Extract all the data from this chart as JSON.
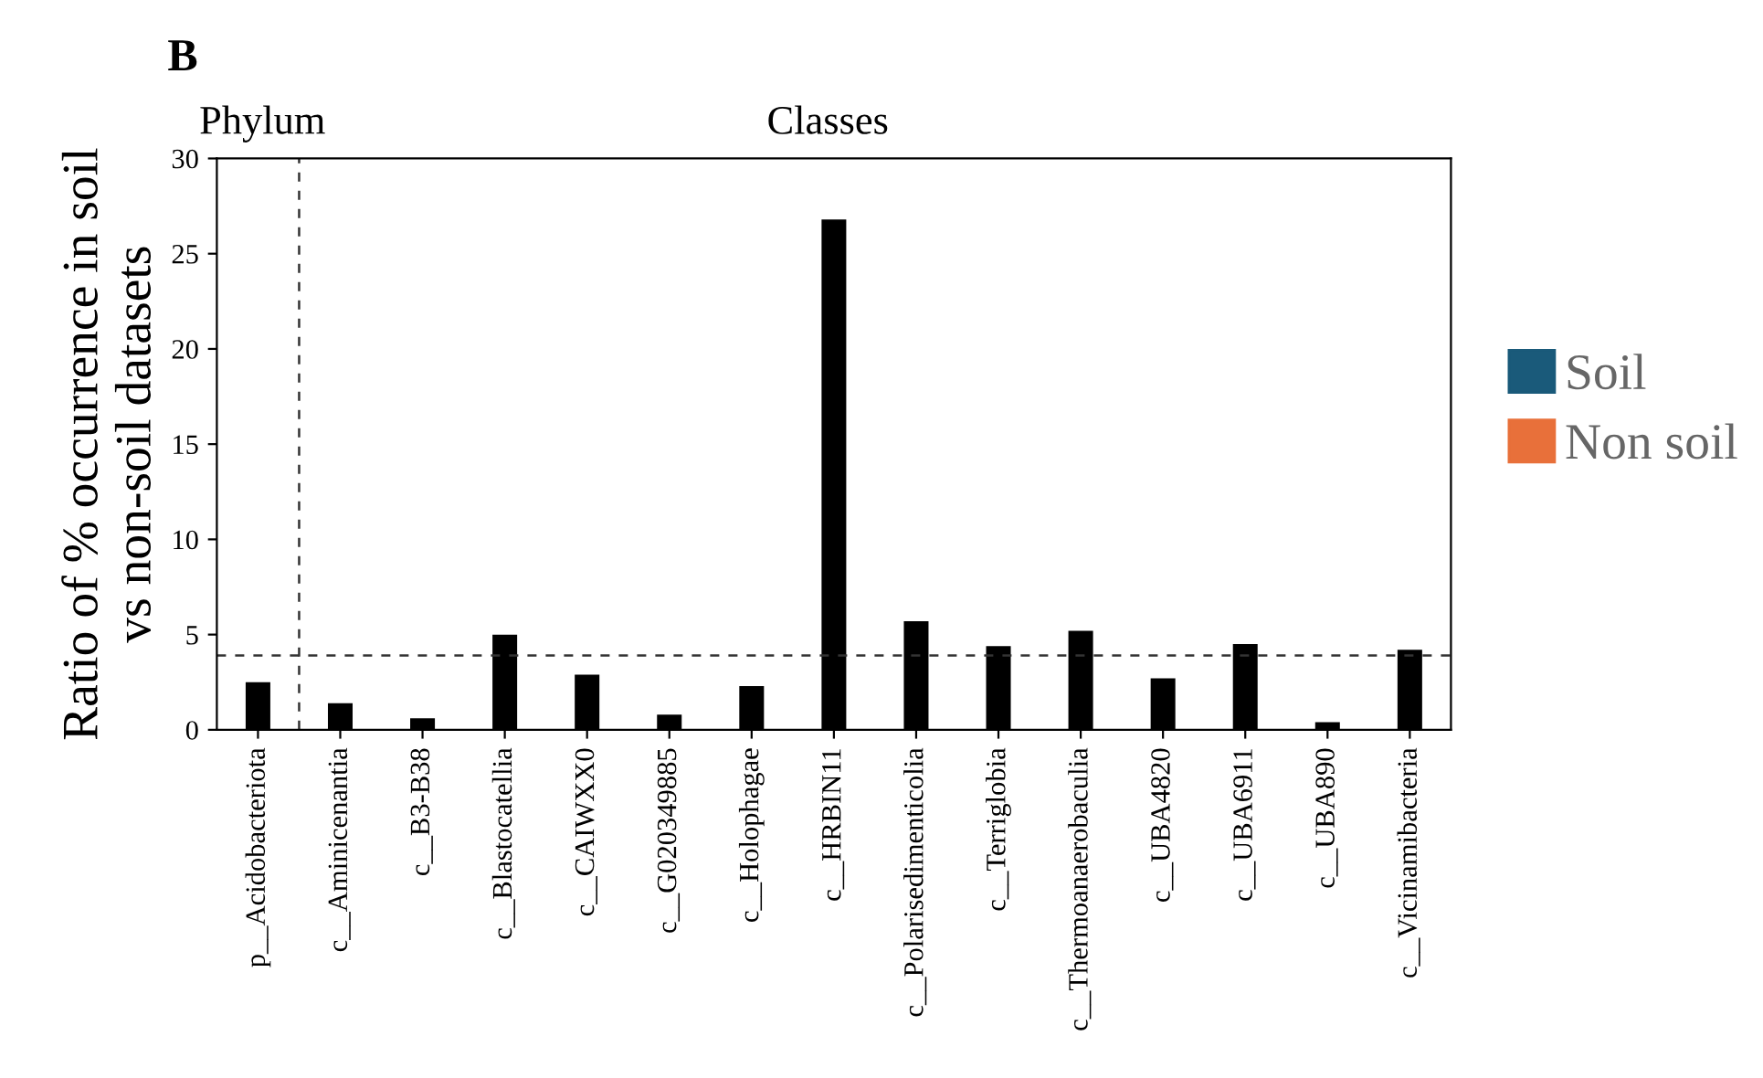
{
  "chart_data": {
    "type": "bar",
    "title": "B",
    "ylabel": "Ratio of % occurrence in soil\nvs non-soil datasets",
    "categories": [
      "p__Acidobacteriota",
      "c__Aminicenantia",
      "c__B3-B38",
      "c__Blastocatellia",
      "c__CAIWXX0",
      "c__G020349885",
      "c__Holophagae",
      "c__HRBIN11",
      "c__Polarisedimenticolia",
      "c__Terriglobia",
      "c__Thermoanaerobaculia",
      "c__UBA4820",
      "c__UBA6911",
      "c__UBA890",
      "c__Vicinamibacteria"
    ],
    "series": [
      {
        "color": "#000000",
        "values": [
          2.5,
          1.4,
          0.6,
          5.0,
          2.9,
          0.8,
          2.3,
          26.8,
          5.7,
          4.4,
          5.2,
          2.7,
          4.5,
          0.4,
          4.2
        ]
      },
      {
        "name": "Soil",
        "color": "#1a5a7a",
        "values": [
          null,
          null,
          null,
          null,
          null,
          null,
          null,
          null,
          null,
          null,
          null,
          null,
          null,
          null,
          null
        ]
      },
      {
        "name": "Non soil",
        "color": "#e8703a",
        "values": [
          null,
          null,
          null,
          null,
          null,
          null,
          null,
          null,
          null,
          null,
          null,
          null,
          null,
          null,
          null
        ]
      }
    ],
    "ylim": [
      0,
      30
    ],
    "yticks": [
      0,
      5,
      10,
      15,
      20,
      25,
      30
    ],
    "ref_lines": [
      {
        "axis": "y",
        "value": 3.9,
        "line_style": "dashed"
      }
    ],
    "annotations": [
      "Phylum",
      "Classes"
    ],
    "grid": false,
    "legend": "right"
  }
}
